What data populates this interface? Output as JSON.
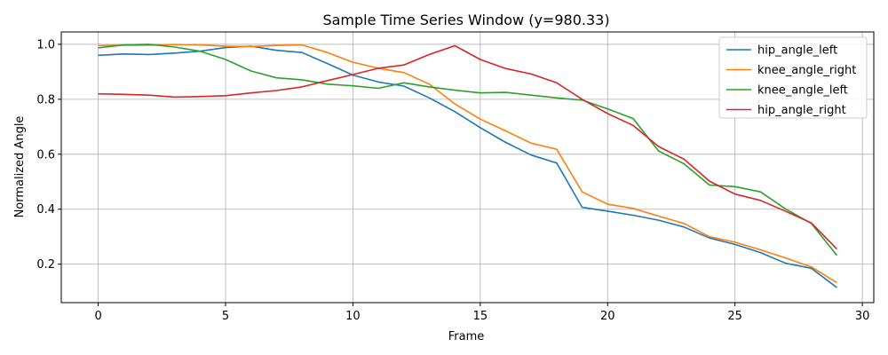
{
  "chart_data": {
    "type": "line",
    "title": "Sample Time Series Window (y=980.33)",
    "xlabel": "Frame",
    "ylabel": "Normalized Angle",
    "xlim": [
      -1.45,
      30.45
    ],
    "ylim": [
      0.06,
      1.045
    ],
    "xticks": [
      0,
      5,
      10,
      15,
      20,
      25,
      30
    ],
    "yticks": [
      0.2,
      0.4,
      0.6,
      0.8,
      1.0
    ],
    "xtick_labels": [
      "0",
      "5",
      "10",
      "15",
      "20",
      "25",
      "30"
    ],
    "ytick_labels": [
      "0.2",
      "0.4",
      "0.6",
      "0.8",
      "1.0"
    ],
    "grid": true,
    "legend_position": "top-right",
    "x": [
      0,
      1,
      2,
      3,
      4,
      5,
      6,
      7,
      8,
      9,
      10,
      11,
      12,
      13,
      14,
      15,
      16,
      17,
      18,
      19,
      20,
      21,
      22,
      23,
      24,
      25,
      26,
      27,
      28,
      29
    ],
    "series": [
      {
        "name": "hip_angle_left",
        "color": "#1f77b4",
        "values": [
          0.96,
          0.965,
          0.963,
          0.968,
          0.975,
          0.988,
          0.993,
          0.978,
          0.97,
          0.93,
          0.888,
          0.863,
          0.848,
          0.805,
          0.755,
          0.697,
          0.643,
          0.597,
          0.568,
          0.407,
          0.393,
          0.378,
          0.36,
          0.335,
          0.295,
          0.272,
          0.242,
          0.203,
          0.185,
          0.115
        ]
      },
      {
        "name": "knee_angle_right",
        "color": "#ff7f0e",
        "values": [
          0.995,
          0.997,
          0.997,
          0.999,
          0.998,
          0.993,
          0.992,
          0.996,
          0.998,
          0.97,
          0.935,
          0.913,
          0.897,
          0.855,
          0.783,
          0.728,
          0.685,
          0.64,
          0.618,
          0.463,
          0.418,
          0.403,
          0.375,
          0.348,
          0.3,
          0.28,
          0.252,
          0.222,
          0.19,
          0.133
        ]
      },
      {
        "name": "knee_angle_left",
        "color": "#2ca02c",
        "values": [
          0.987,
          0.998,
          1.0,
          0.99,
          0.975,
          0.945,
          0.903,
          0.878,
          0.871,
          0.855,
          0.849,
          0.84,
          0.86,
          0.845,
          0.833,
          0.823,
          0.825,
          0.815,
          0.805,
          0.797,
          0.765,
          0.73,
          0.612,
          0.565,
          0.488,
          0.482,
          0.463,
          0.4,
          0.348,
          0.232
        ]
      },
      {
        "name": "hip_angle_right",
        "color": "#d62728",
        "values": [
          0.82,
          0.818,
          0.815,
          0.808,
          0.81,
          0.813,
          0.823,
          0.832,
          0.845,
          0.868,
          0.89,
          0.913,
          0.925,
          0.963,
          0.995,
          0.945,
          0.912,
          0.892,
          0.86,
          0.8,
          0.748,
          0.705,
          0.628,
          0.582,
          0.502,
          0.455,
          0.432,
          0.392,
          0.35,
          0.255
        ]
      }
    ]
  }
}
